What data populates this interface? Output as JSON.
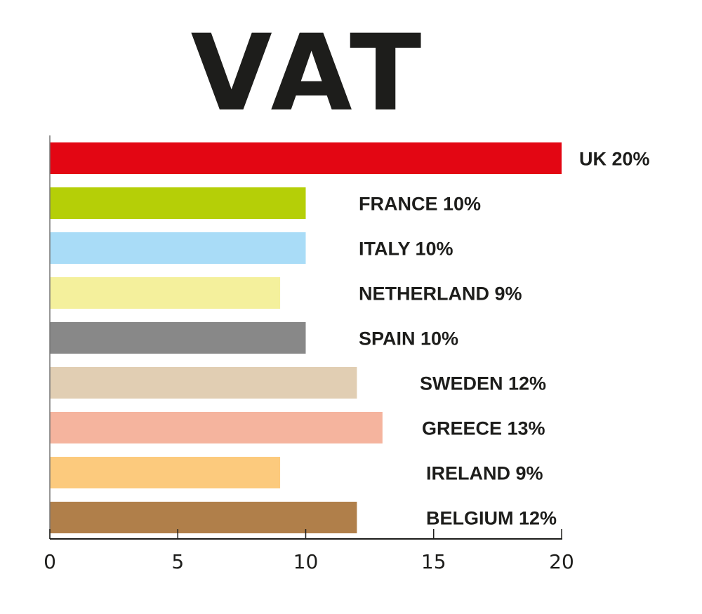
{
  "chart_data": {
    "type": "bar",
    "orientation": "horizontal",
    "title": "VAT",
    "categories": [
      "UK",
      "FRANCE",
      "ITALY",
      "NETHERLAND",
      "SPAIN",
      "SWEDEN",
      "GREECE",
      "IRELAND",
      "BELGIUM"
    ],
    "values": [
      20,
      10,
      10,
      9,
      10,
      12,
      13,
      9,
      12
    ],
    "data_labels": [
      "UK 20%",
      "FRANCE 10%",
      "ITALY 10%",
      "NETHERLAND 9%",
      "SPAIN 10%",
      "SWEDEN 12%",
      "GREECE 13%",
      "IRELAND 9%",
      "BELGIUM 12%"
    ],
    "colors": [
      "#e30613",
      "#b5cf07",
      "#a9dcf7",
      "#f4f09c",
      "#888888",
      "#e1ceb3",
      "#f5b49e",
      "#fcca7d",
      "#b07f4a"
    ],
    "xlim": [
      0,
      20
    ],
    "xticks": [
      "0",
      "5",
      "10",
      "15",
      "20"
    ],
    "xlabel": "",
    "ylabel": "",
    "grid": false,
    "legend": "none"
  }
}
